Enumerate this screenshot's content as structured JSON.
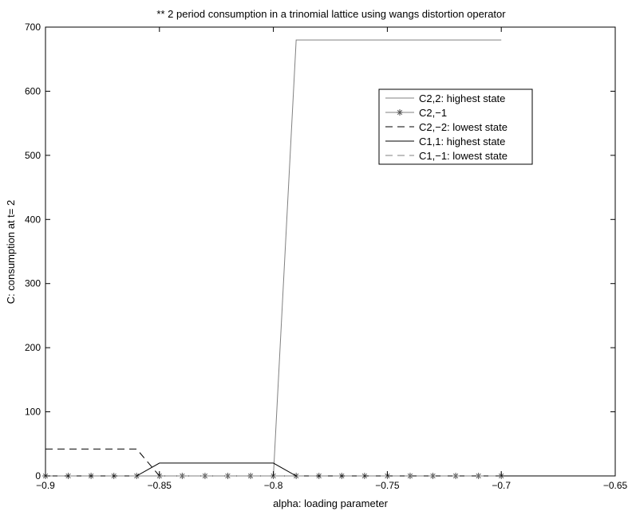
{
  "chart_data": {
    "type": "line",
    "title": "** 2 period consumption in a trinomial lattice using wangs distortion operator",
    "xlabel": "alpha: loading parameter",
    "ylabel": "C: consumption at t= 2",
    "xlim": [
      -0.9,
      -0.65
    ],
    "ylim": [
      0,
      700
    ],
    "xticks": [
      -0.9,
      -0.85,
      -0.8,
      -0.75,
      -0.7,
      -0.65
    ],
    "xtick_labels": [
      "−0.9",
      "−0.85",
      "−0.8",
      "−0.75",
      "−0.7",
      "−0.65"
    ],
    "yticks": [
      0,
      100,
      200,
      300,
      400,
      500,
      600,
      700
    ],
    "ytick_labels": [
      "0",
      "100",
      "200",
      "300",
      "400",
      "500",
      "600",
      "700"
    ],
    "grid": false,
    "legend_position": "top-right",
    "series": [
      {
        "name": "C2,2: highest state",
        "style": "solid",
        "color": "#808080",
        "marker": "none",
        "x": [
          -0.9,
          -0.8,
          -0.79,
          -0.7
        ],
        "y": [
          0,
          0,
          680,
          680
        ]
      },
      {
        "name": "C2,−1",
        "style": "solid",
        "color": "#808080",
        "marker": "star",
        "x": [
          -0.9,
          -0.89,
          -0.88,
          -0.87,
          -0.86,
          -0.85,
          -0.84,
          -0.83,
          -0.82,
          -0.81,
          -0.8,
          -0.79,
          -0.78,
          -0.77,
          -0.76,
          -0.75,
          -0.74,
          -0.73,
          -0.72,
          -0.71,
          -0.7
        ],
        "y": [
          0,
          0,
          0,
          0,
          0,
          0,
          0,
          0,
          0,
          0,
          0,
          0,
          0,
          0,
          0,
          0,
          0,
          0,
          0,
          0,
          0
        ]
      },
      {
        "name": "C2,−2: lowest state",
        "style": "dashed",
        "color": "#000000",
        "marker": "none",
        "x": [
          -0.9,
          -0.86,
          -0.85,
          -0.65
        ],
        "y": [
          42,
          42,
          0,
          0
        ]
      },
      {
        "name": "C1,1: highest state",
        "style": "solid",
        "color": "#000000",
        "marker": "none",
        "x": [
          -0.9,
          -0.86,
          -0.85,
          -0.8,
          -0.79,
          -0.65
        ],
        "y": [
          0,
          0,
          20,
          20,
          0,
          0
        ]
      },
      {
        "name": "C1,−1: lowest state",
        "style": "dashed",
        "color": "#808080",
        "marker": "none",
        "x": [
          -0.9,
          -0.7
        ],
        "y": [
          0,
          0
        ]
      }
    ]
  }
}
